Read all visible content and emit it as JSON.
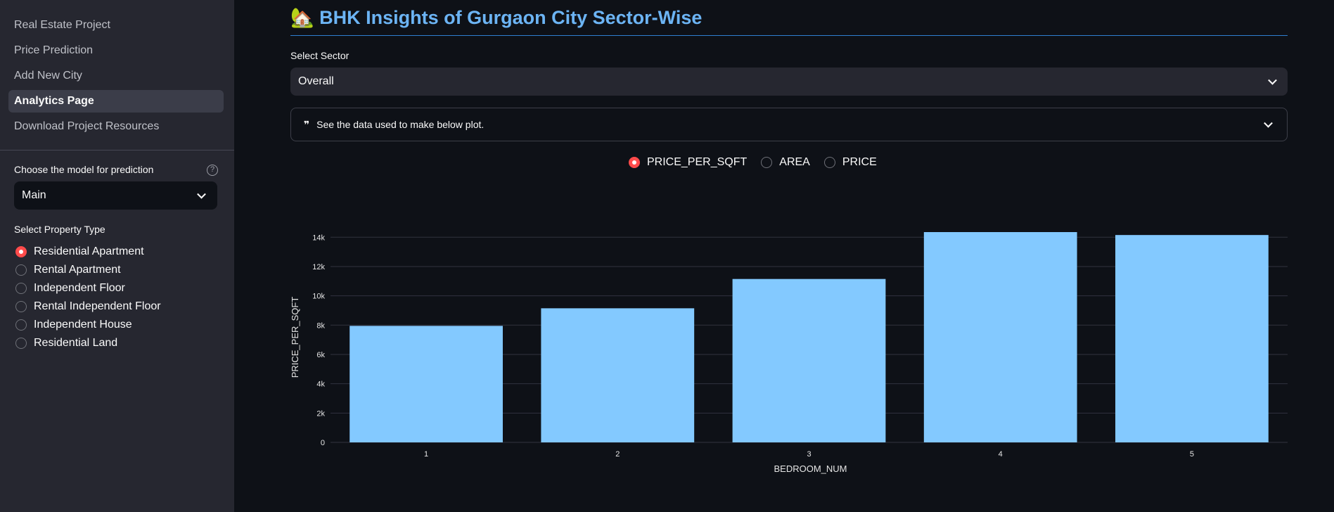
{
  "sidebar": {
    "nav": [
      {
        "label": "Real Estate Project",
        "active": false
      },
      {
        "label": "Price Prediction",
        "active": false
      },
      {
        "label": "Add New City",
        "active": false
      },
      {
        "label": "Analytics Page",
        "active": true
      },
      {
        "label": "Download Project Resources",
        "active": false
      }
    ],
    "model_label": "Choose the model for prediction",
    "help_icon": "?",
    "model_value": "Main",
    "property_label": "Select Property Type",
    "property_types": [
      {
        "label": "Residential Apartment",
        "selected": true
      },
      {
        "label": "Rental Apartment",
        "selected": false
      },
      {
        "label": "Independent Floor",
        "selected": false
      },
      {
        "label": "Rental Independent Floor",
        "selected": false
      },
      {
        "label": "Independent House",
        "selected": false
      },
      {
        "label": "Residential Land",
        "selected": false
      }
    ]
  },
  "main": {
    "title_icon": "🏡",
    "title": "BHK Insights of Gurgaon City Sector-Wise",
    "sector_label": "Select Sector",
    "sector_value": "Overall",
    "expander_icon": "❞",
    "expander_label": "See the data used to make below plot.",
    "metrics": [
      {
        "label": "PRICE_PER_SQFT",
        "selected": true
      },
      {
        "label": "AREA",
        "selected": false
      },
      {
        "label": "PRICE",
        "selected": false
      }
    ]
  },
  "colors": {
    "accent": "#ff4b4b",
    "title": "#6cb4f4",
    "bar": "#83c9ff",
    "sidebar_bg": "#262730",
    "main_bg": "#0e1117"
  },
  "chart_data": {
    "type": "bar",
    "categories": [
      "1",
      "2",
      "3",
      "4",
      "5"
    ],
    "values": [
      7950,
      9150,
      11150,
      14350,
      14150
    ],
    "xlabel": "BEDROOM_NUM",
    "ylabel": "PRICE_PER_SQFT",
    "ylim": [
      0,
      14350
    ],
    "yticks": [
      0,
      2000,
      4000,
      6000,
      8000,
      10000,
      12000,
      14000
    ],
    "ytick_labels": [
      "0",
      "2k",
      "4k",
      "6k",
      "8k",
      "10k",
      "12k",
      "14k"
    ],
    "grid": true
  }
}
